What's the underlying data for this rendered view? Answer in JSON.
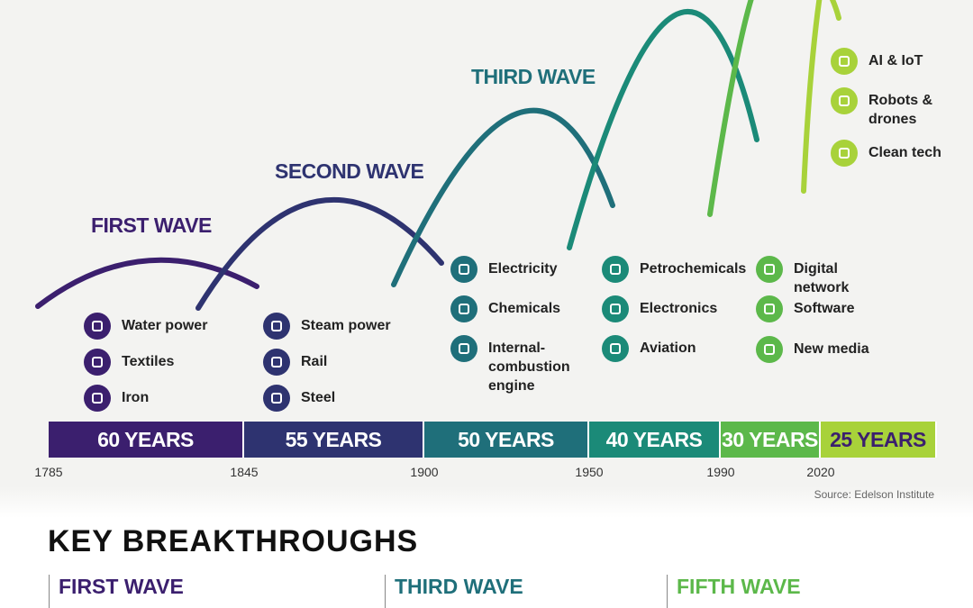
{
  "waves": [
    {
      "label": "FIRST WAVE",
      "items": [
        "Water power",
        "Textiles",
        "Iron"
      ],
      "duration": "60 YEARS",
      "start_year": "1785"
    },
    {
      "label": "SECOND WAVE",
      "items": [
        "Steam power",
        "Rail",
        "Steel"
      ],
      "duration": "55 YEARS",
      "start_year": "1845"
    },
    {
      "label": "THIRD WAVE",
      "items": [
        "Electricity",
        "Chemicals",
        "Internal-combustion engine"
      ],
      "duration": "50 YEARS",
      "start_year": "1900"
    },
    {
      "items": [
        "Petrochemicals",
        "Electronics",
        "Aviation"
      ],
      "duration": "40 YEARS",
      "start_year": "1950"
    },
    {
      "items": [
        "Digital network",
        "Software",
        "New media"
      ],
      "duration": "30 YEARS",
      "start_year": "1990"
    },
    {
      "items": [
        "AI & IoT",
        "Robots & drones",
        "Clean tech"
      ],
      "duration": "25 YEARS",
      "start_year": "2020"
    }
  ],
  "source": "Source: Edelson Institute",
  "key": {
    "title": "KEY BREAKTHROUGHS",
    "columns": [
      "FIRST WAVE",
      "THIRD WAVE",
      "FIFTH WAVE"
    ]
  }
}
